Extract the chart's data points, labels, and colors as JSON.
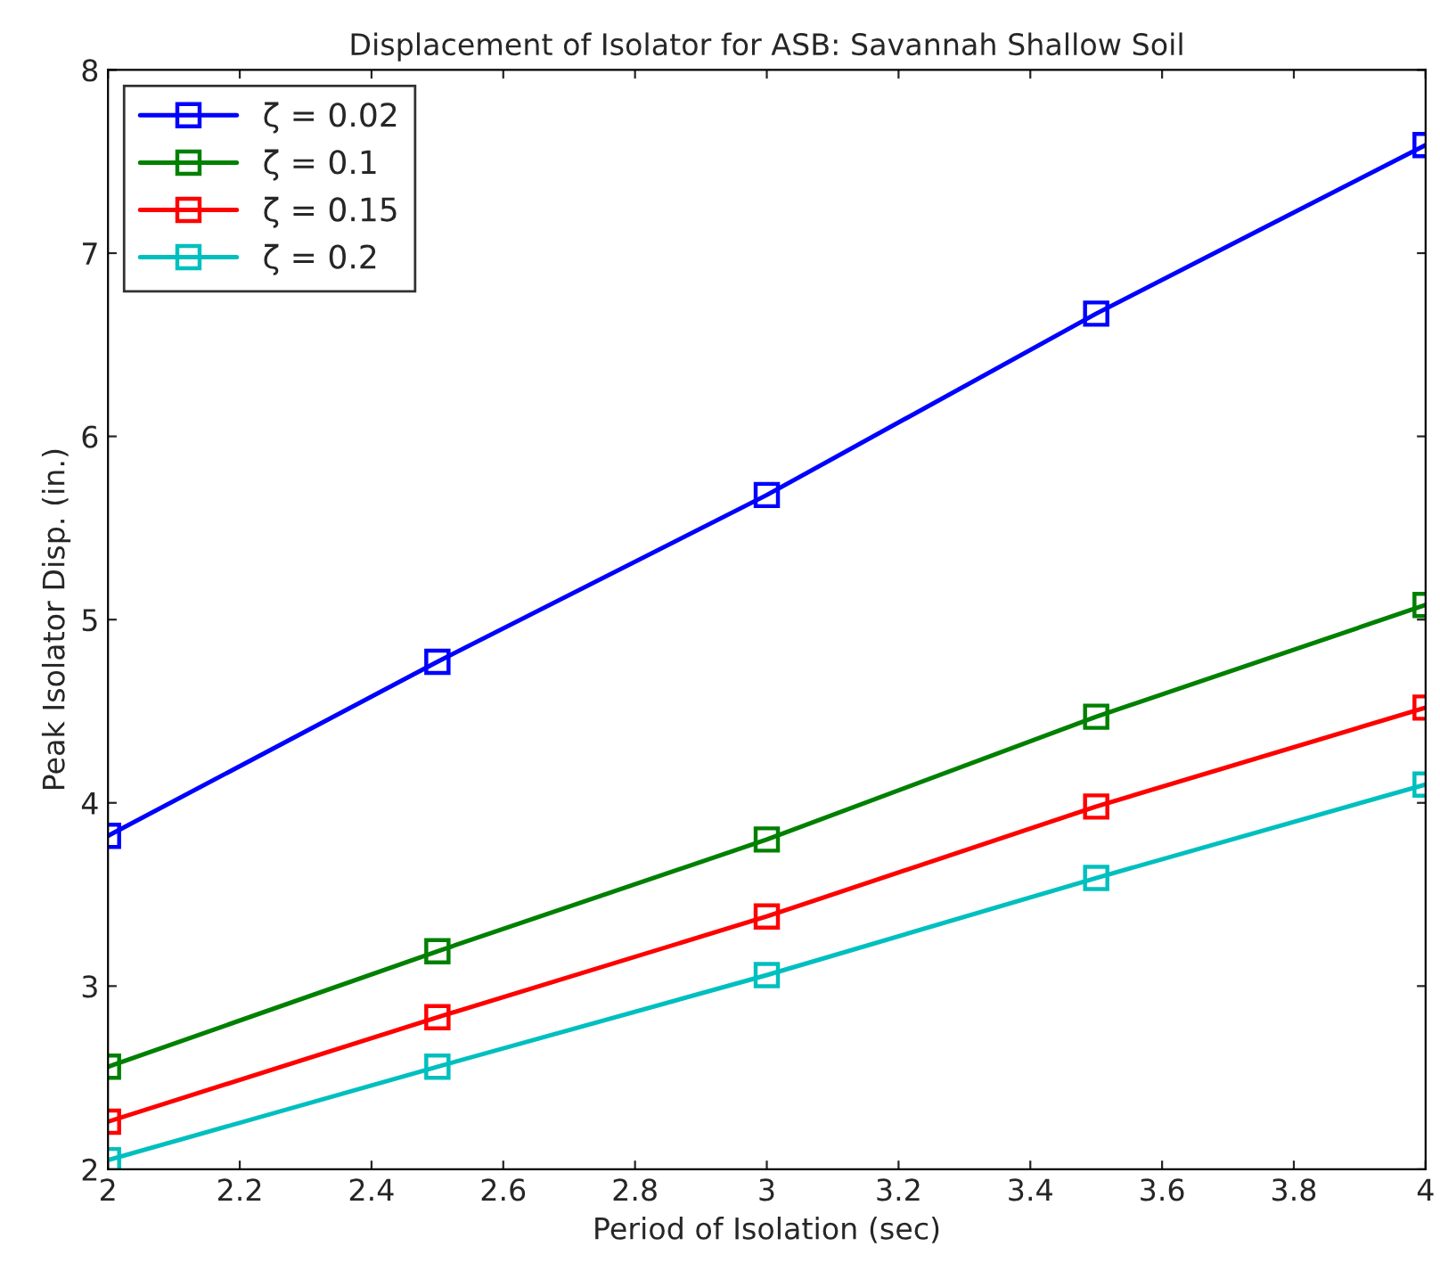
{
  "chart_data": {
    "type": "line",
    "title": "Displacement of Isolator for ASB: Savannah Shallow Soil",
    "xlabel": "Period of Isolation (sec)",
    "ylabel": "Peak Isolator Disp. (in.)",
    "x": [
      2,
      2.5,
      3,
      3.5,
      4
    ],
    "series": [
      {
        "name": "ζ = 0.02",
        "color": "#0000ff",
        "values": [
          3.82,
          4.77,
          5.68,
          6.67,
          7.59
        ]
      },
      {
        "name": "ζ = 0.1",
        "color": "#008000",
        "values": [
          2.56,
          3.19,
          3.8,
          4.47,
          5.08
        ]
      },
      {
        "name": "ζ = 0.15",
        "color": "#ff0000",
        "values": [
          2.26,
          2.83,
          3.38,
          3.98,
          4.52
        ]
      },
      {
        "name": "ζ = 0.2",
        "color": "#00bfbf",
        "values": [
          2.05,
          2.56,
          3.06,
          3.59,
          4.1
        ]
      }
    ],
    "xlim": [
      2,
      4
    ],
    "ylim": [
      2,
      8
    ],
    "xticks": [
      2,
      2.2,
      2.4,
      2.6,
      2.8,
      3,
      3.2,
      3.4,
      3.6,
      3.8,
      4
    ],
    "yticks": [
      2,
      3,
      4,
      5,
      6,
      7,
      8
    ],
    "marker": "square",
    "line_style": "solid",
    "legend": "top left",
    "grid": false
  }
}
